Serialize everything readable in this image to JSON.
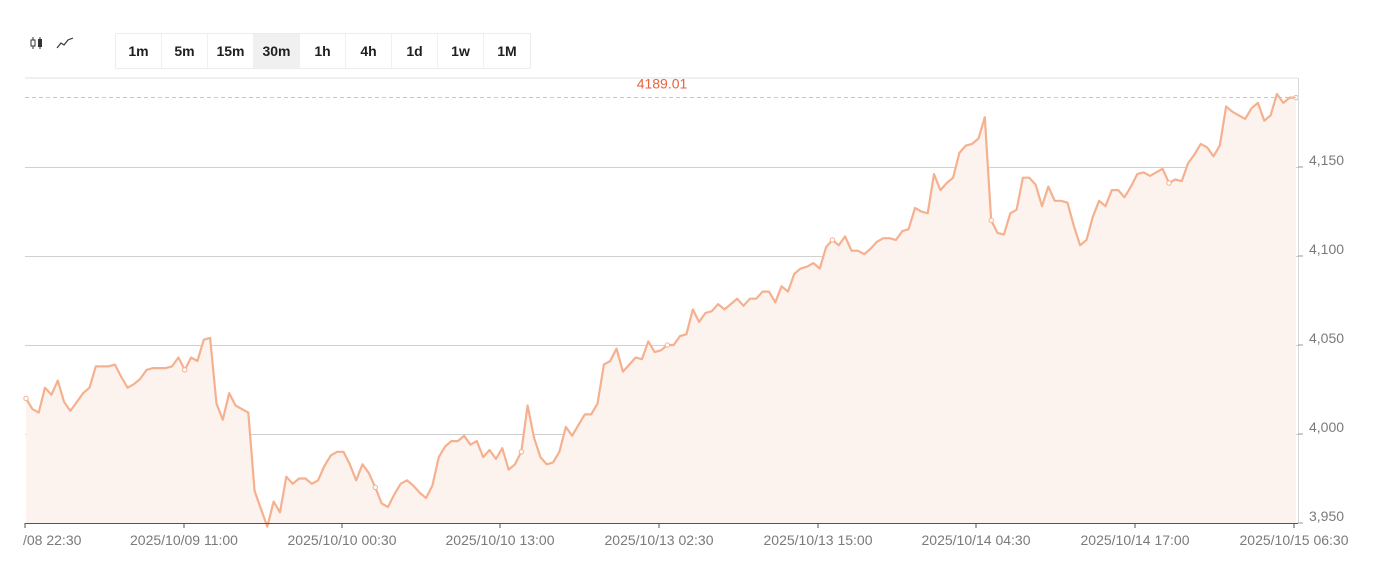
{
  "toolbar": {
    "chart_type_icons": [
      "candlestick-icon",
      "line-chart-icon"
    ],
    "timeframes": [
      "1m",
      "5m",
      "15m",
      "30m",
      "1h",
      "4h",
      "1d",
      "1w",
      "1M"
    ],
    "active_timeframe": "30m"
  },
  "colors": {
    "line": "#f5b18f",
    "area": "#fdf3ee",
    "last_price_line": "#f6b896",
    "last_price_text": "#e8623c",
    "grid": "#d0d0d0",
    "axis_text": "#7a7a7a"
  },
  "chart_data": {
    "type": "area",
    "last_price_label": "4189.01",
    "last_price": 4189.01,
    "ylim": [
      3950,
      4200
    ],
    "yticks": [
      3950,
      4000,
      4050,
      4100,
      4150
    ],
    "ytick_labels": [
      "3,950",
      "4,000",
      "4,050",
      "4,100",
      "4,150"
    ],
    "xtick_labels": [
      "/08 22:30",
      "2025/10/09 11:00",
      "2025/10/10 00:30",
      "2025/10/10 13:00",
      "2025/10/13 02:30",
      "2025/10/13 15:00",
      "2025/10/14 04:30",
      "2025/10/14 17:00",
      "2025/10/15 06:30"
    ],
    "grid": true,
    "series": [
      {
        "values": [
          4020,
          4014,
          4012,
          4026,
          4022,
          4030,
          4018,
          4013,
          4018,
          4023,
          4026,
          4038,
          4038,
          4038,
          4039,
          4032,
          4026,
          4028,
          4031,
          4036,
          4037,
          4037,
          4037,
          4038,
          4043,
          4036,
          4043,
          4041,
          4053,
          4054,
          4017,
          4008,
          4023,
          4016,
          4014,
          4012,
          3968,
          3958,
          3948,
          3962,
          3956,
          3976,
          3972,
          3975,
          3975,
          3972,
          3974,
          3982,
          3988,
          3990,
          3990,
          3983,
          3974,
          3983,
          3978,
          3970,
          3961,
          3959,
          3966,
          3972,
          3974,
          3971,
          3967,
          3964,
          3971,
          3987,
          3993,
          3996,
          3996,
          3999,
          3994,
          3996,
          3987,
          3991,
          3986,
          3992,
          3980,
          3983,
          3990,
          4016,
          3998,
          3987,
          3983,
          3984,
          3990,
          4004,
          3999,
          4005,
          4011,
          4011,
          4017,
          4039,
          4041,
          4048,
          4035,
          4039,
          4043,
          4042,
          4052,
          4046,
          4047,
          4050,
          4050,
          4055,
          4056,
          4070,
          4063,
          4068,
          4069,
          4073,
          4070,
          4073,
          4076,
          4072,
          4076,
          4076,
          4080,
          4080,
          4074,
          4083,
          4080,
          4090,
          4093,
          4094,
          4096,
          4093,
          4105,
          4109,
          4106,
          4111,
          4103,
          4103,
          4101,
          4104,
          4108,
          4110,
          4110,
          4109,
          4114,
          4115,
          4127,
          4125,
          4124,
          4146,
          4137,
          4141,
          4144,
          4158,
          4162,
          4163,
          4166,
          4178,
          4120,
          4113,
          4112,
          4124,
          4126,
          4144,
          4144,
          4140,
          4128,
          4139,
          4131,
          4131,
          4130,
          4117,
          4106,
          4109,
          4122,
          4131,
          4128,
          4137,
          4137,
          4133,
          4139,
          4146,
          4147,
          4145,
          4147,
          4149,
          4141,
          4143,
          4142,
          4152,
          4157,
          4163,
          4161,
          4156,
          4162,
          4184,
          4181,
          4179,
          4177,
          4183,
          4186,
          4176,
          4179,
          4191,
          4186,
          4189,
          4189
        ]
      }
    ]
  }
}
